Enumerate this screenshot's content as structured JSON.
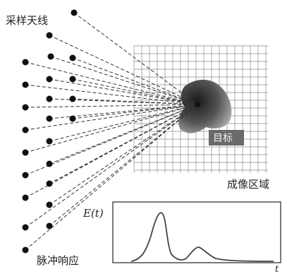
{
  "labels": {
    "antenna": "采样天线",
    "imaging_region": "成像区域",
    "target": "目标",
    "pulse_response": "脉冲响应"
  },
  "plot": {
    "ylabel": "E(t)",
    "xlabel": "t"
  },
  "colors": {
    "dot": "#111111",
    "grid": "#8a8a8a",
    "ray": "#333333",
    "target_dark": "#1a1a1a",
    "target_light": "#b5b5b5",
    "curve": "#444444"
  }
}
